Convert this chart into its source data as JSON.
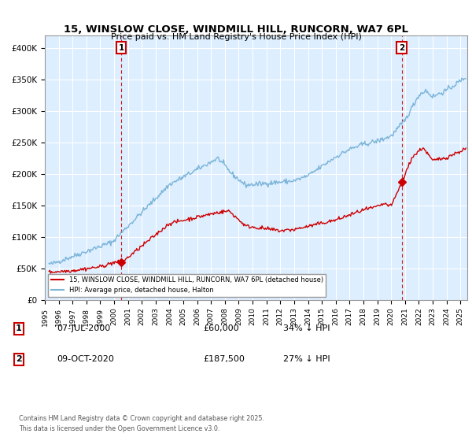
{
  "title": "15, WINSLOW CLOSE, WINDMILL HILL, RUNCORN, WA7 6PL",
  "subtitle": "Price paid vs. HM Land Registry's House Price Index (HPI)",
  "ylim": [
    0,
    420000
  ],
  "xlim_start": 1995.3,
  "xlim_end": 2025.5,
  "yticks": [
    0,
    50000,
    100000,
    150000,
    200000,
    250000,
    300000,
    350000,
    400000
  ],
  "ytick_labels": [
    "£0",
    "£50K",
    "£100K",
    "£150K",
    "£200K",
    "£250K",
    "£300K",
    "£350K",
    "£400K"
  ],
  "hpi_color": "#7ab4d8",
  "price_color": "#cc0000",
  "sale1_x": 2000.52,
  "sale1_y": 60000,
  "sale1_label": "1",
  "sale2_x": 2020.77,
  "sale2_y": 187500,
  "sale2_label": "2",
  "vline1_x": 2000.52,
  "vline2_x": 2020.77,
  "legend_line1": "15, WINSLOW CLOSE, WINDMILL HILL, RUNCORN, WA7 6PL (detached house)",
  "legend_line2": "HPI: Average price, detached house, Halton",
  "annot1_box": "1",
  "annot1_date": "07-JUL-2000",
  "annot1_price": "£60,000",
  "annot1_hpi": "34% ↓ HPI",
  "annot2_box": "2",
  "annot2_date": "09-OCT-2020",
  "annot2_price": "£187,500",
  "annot2_hpi": "27% ↓ HPI",
  "footer": "Contains HM Land Registry data © Crown copyright and database right 2025.\nThis data is licensed under the Open Government Licence v3.0.",
  "background_color": "#ffffff",
  "plot_bg_color": "#ddeeff",
  "grid_color": "#ffffff"
}
